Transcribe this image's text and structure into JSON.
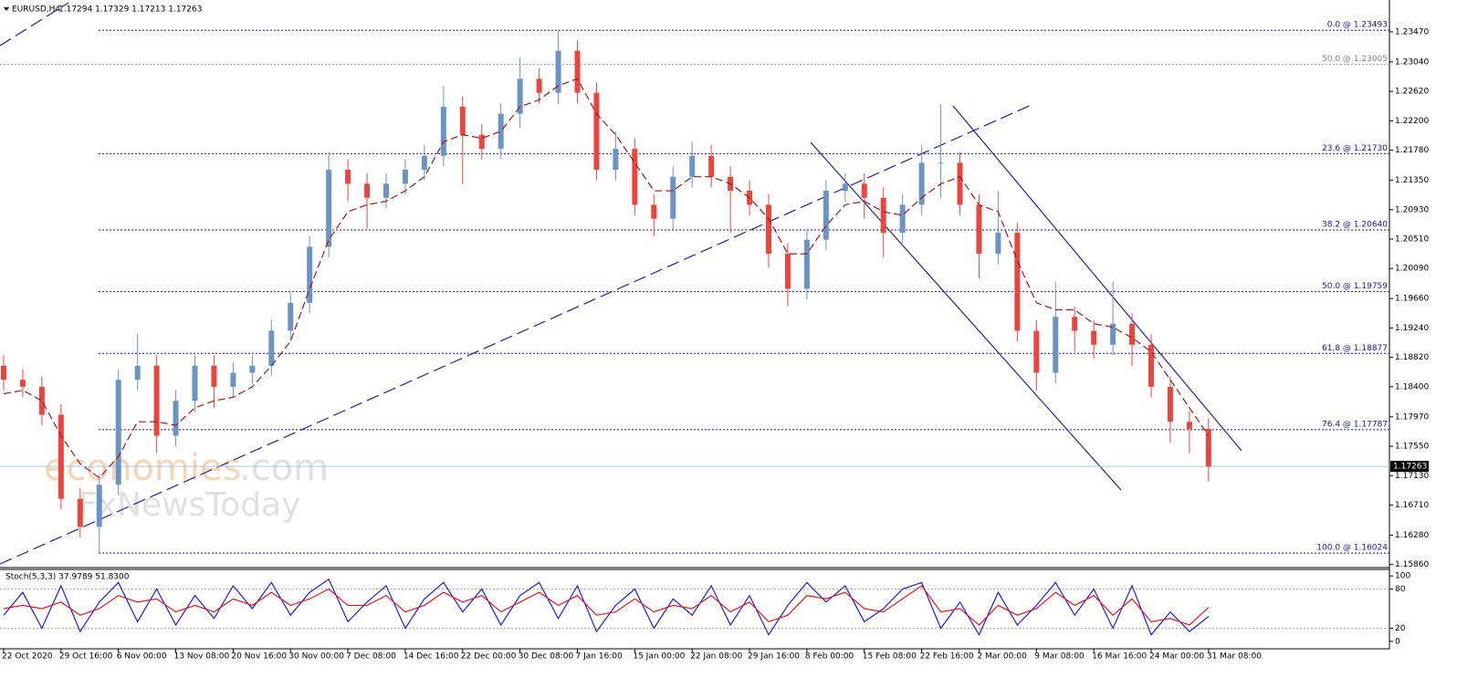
{
  "chart_data": {
    "type": "candlestick",
    "symbol": "EURUSD,H4",
    "quote": "1.17294 1.17329 1.17213 1.17263",
    "categories": [
      "22 Oct 2020",
      null,
      null,
      "29 Oct 16:00",
      null,
      null,
      "6 Nov 00:00",
      null,
      null,
      "13 Nov 08:00",
      null,
      null,
      "20 Nov 16:00",
      null,
      null,
      "30 Nov 00:00",
      null,
      null,
      "7 Dec 08:00",
      null,
      null,
      "14 Dec 16:00",
      null,
      null,
      "22 Dec 00:00",
      null,
      null,
      "30 Dec 08:00",
      null,
      null,
      "7 Jan 16:00",
      null,
      null,
      "15 Jan 00:00",
      null,
      null,
      "22 Jan 08:00",
      null,
      null,
      "29 Jan 16:00",
      null,
      null,
      "8 Feb 00:00",
      null,
      null,
      "15 Feb 08:00",
      null,
      null,
      "22 Feb 16:00",
      null,
      null,
      "2 Mar 00:00",
      null,
      null,
      "9 Mar 08:00",
      null,
      null,
      "16 Mar 16:00",
      null,
      null,
      "24 Mar 00:00",
      null,
      null,
      "31 Mar 08:00"
    ],
    "open": [
      1.187,
      1.185,
      1.184,
      1.18,
      1.168,
      1.164,
      1.17,
      1.185,
      1.187,
      1.177,
      1.182,
      1.187,
      1.184,
      1.186,
      1.187,
      1.192,
      1.196,
      1.204,
      1.215,
      1.213,
      1.211,
      1.213,
      1.215,
      1.217,
      1.224,
      1.22,
      1.218,
      1.223,
      1.228,
      1.226,
      1.232,
      1.226,
      1.215,
      1.218,
      1.21,
      1.208,
      1.214,
      1.217,
      1.214,
      1.212,
      1.21,
      1.203,
      1.198,
      1.205,
      1.212,
      1.213,
      1.211,
      1.206,
      1.21,
      1.216,
      1.216,
      1.21,
      1.203,
      1.206,
      1.192,
      1.186,
      1.194,
      1.192,
      1.19,
      1.193,
      1.19,
      1.184,
      1.179,
      1.178
    ],
    "high": [
      1.1885,
      1.1865,
      1.1855,
      1.1815,
      1.1695,
      1.1715,
      1.1865,
      1.1915,
      1.1885,
      1.1835,
      1.1885,
      1.1885,
      1.1875,
      1.1885,
      1.1935,
      1.1975,
      1.2055,
      1.2175,
      1.2165,
      1.2145,
      1.2145,
      1.2165,
      1.2185,
      1.227,
      1.2255,
      1.2215,
      1.2245,
      1.231,
      1.2295,
      1.2349,
      1.2335,
      1.2275,
      1.2205,
      1.2195,
      1.2115,
      1.2155,
      1.219,
      1.2185,
      1.2155,
      1.2135,
      1.2115,
      1.2045,
      1.2065,
      1.2135,
      1.2145,
      1.2145,
      1.2125,
      1.2115,
      1.2185,
      1.2243,
      1.2175,
      1.2115,
      1.212,
      1.2075,
      1.1935,
      1.199,
      1.1955,
      1.1935,
      1.199,
      1.1945,
      1.1915,
      1.1855,
      1.1805,
      1.1795
    ],
    "low": [
      1.1835,
      1.1825,
      1.1785,
      1.1665,
      1.1625,
      1.1602,
      1.1685,
      1.1835,
      1.1745,
      1.1755,
      1.1805,
      1.181,
      1.1825,
      1.1845,
      1.1855,
      1.1905,
      1.1945,
      1.2025,
      1.2105,
      1.2065,
      1.2095,
      1.2115,
      1.2135,
      1.2155,
      1.213,
      1.2165,
      1.2165,
      1.221,
      1.2245,
      1.2245,
      1.2245,
      1.2135,
      1.2135,
      1.2085,
      1.2055,
      1.2065,
      1.2125,
      1.2125,
      1.206,
      1.2085,
      1.201,
      1.1955,
      1.1965,
      1.2035,
      1.2105,
      1.208,
      1.2025,
      1.2045,
      1.2085,
      1.211,
      1.2085,
      1.1995,
      1.2015,
      1.1905,
      1.1835,
      1.1845,
      1.189,
      1.188,
      1.1885,
      1.187,
      1.1825,
      1.176,
      1.1745,
      1.1705
    ],
    "close": [
      1.185,
      1.184,
      1.18,
      1.168,
      1.164,
      1.17,
      1.185,
      1.187,
      1.177,
      1.182,
      1.187,
      1.184,
      1.186,
      1.187,
      1.192,
      1.196,
      1.204,
      1.215,
      1.213,
      1.211,
      1.213,
      1.215,
      1.217,
      1.224,
      1.22,
      1.218,
      1.223,
      1.228,
      1.226,
      1.232,
      1.226,
      1.215,
      1.218,
      1.21,
      1.208,
      1.214,
      1.217,
      1.214,
      1.212,
      1.21,
      1.203,
      1.198,
      1.205,
      1.212,
      1.213,
      1.211,
      1.206,
      1.21,
      1.216,
      1.216,
      1.21,
      1.203,
      1.206,
      1.192,
      1.186,
      1.194,
      1.192,
      1.19,
      1.193,
      1.19,
      1.184,
      1.179,
      1.178,
      1.1726
    ],
    "up_color": "#6b93c4",
    "down_color": "#e8463f",
    "ma": {
      "color": "#9b1b1b",
      "values": [
        1.183,
        1.1835,
        1.182,
        1.177,
        1.173,
        1.171,
        1.174,
        1.179,
        1.179,
        1.1785,
        1.181,
        1.182,
        1.1825,
        1.184,
        1.187,
        1.1905,
        1.198,
        1.205,
        1.209,
        1.21,
        1.2105,
        1.212,
        1.214,
        1.219,
        1.22,
        1.2195,
        1.2205,
        1.224,
        1.225,
        1.227,
        1.228,
        1.223,
        1.22,
        1.216,
        1.212,
        1.212,
        1.214,
        1.214,
        1.213,
        1.211,
        1.208,
        1.203,
        1.203,
        1.207,
        1.21,
        1.2105,
        1.209,
        1.2085,
        1.211,
        1.213,
        1.214,
        1.21,
        1.209,
        1.202,
        1.196,
        1.195,
        1.195,
        1.193,
        1.1925,
        1.191,
        1.189,
        1.185,
        1.181,
        1.177
      ]
    },
    "ylim": [
      1.1583,
      1.2386
    ],
    "yticks": [
      {
        "value": 1.2347,
        "label": "1.23470"
      },
      {
        "value": 1.2304,
        "label": "1.23040"
      },
      {
        "value": 1.2262,
        "label": "1.22620"
      },
      {
        "value": 1.222,
        "label": "1.22200"
      },
      {
        "value": 1.2178,
        "label": "1.21780"
      },
      {
        "value": 1.2135,
        "label": "1.21350"
      },
      {
        "value": 1.2093,
        "label": "1.20930"
      },
      {
        "value": 1.2051,
        "label": "1.20510"
      },
      {
        "value": 1.2009,
        "label": "1.20090"
      },
      {
        "value": 1.1966,
        "label": "1.19660"
      },
      {
        "value": 1.1924,
        "label": "1.19240"
      },
      {
        "value": 1.1882,
        "label": "1.18820"
      },
      {
        "value": 1.184,
        "label": "1.18400"
      },
      {
        "value": 1.1797,
        "label": "1.17970"
      },
      {
        "value": 1.1755,
        "label": "1.17550"
      },
      {
        "value": 1.1713,
        "label": "1.17130"
      },
      {
        "value": 1.1671,
        "label": "1.16710"
      },
      {
        "value": 1.1628,
        "label": "1.16280"
      },
      {
        "value": 1.1586,
        "label": "1.15860"
      }
    ],
    "levels": [
      {
        "label": "0.0 @ 1.23493",
        "value": 1.23493,
        "color": "#1a1a9a"
      },
      {
        "label": "50.0 @ 1.23005",
        "value": 1.23005,
        "color": "#a0a0a0"
      },
      {
        "label": "23.6 @ 1.21730",
        "value": 1.2173,
        "color": "#1a1a9a"
      },
      {
        "label": "38.2 @ 1.20640",
        "value": 1.2064,
        "color": "#1a1a9a"
      },
      {
        "label": "50.0 @ 1.19759",
        "value": 1.19759,
        "color": "#1a1a9a"
      },
      {
        "label": "61.8 @ 1.18877",
        "value": 1.18877,
        "color": "#1a1a9a"
      },
      {
        "label": "76.4 @ 1.17787",
        "value": 1.17787,
        "color": "#1a1a9a"
      },
      {
        "label": "100.0 @ 1.16024",
        "value": 1.16024,
        "color": "#1a1a9a"
      }
    ],
    "current_price": {
      "value": 1.17263,
      "label": "1.17263"
    },
    "indicator": {
      "title": "Stoch(5,3,3) 37.9789 51.8300",
      "ylim": [
        -10,
        110
      ],
      "yticks": [
        100,
        80,
        20,
        0
      ],
      "levels": [
        80,
        20
      ],
      "series": [
        {
          "color": "#1e1ed2",
          "values": [
            40,
            75,
            20,
            85,
            15,
            60,
            90,
            30,
            80,
            25,
            70,
            35,
            85,
            50,
            90,
            40,
            75,
            95,
            30,
            60,
            85,
            20,
            65,
            90,
            45,
            80,
            25,
            70,
            90,
            35,
            85,
            15,
            55,
            80,
            20,
            65,
            40,
            85,
            25,
            70,
            10,
            55,
            90,
            60,
            85,
            30,
            50,
            80,
            90,
            20,
            60,
            10,
            75,
            25,
            55,
            90,
            40,
            80,
            20,
            85,
            10,
            45,
            15,
            37.9789
          ]
        },
        {
          "color": "#e01b1b",
          "values": [
            50,
            55,
            50,
            60,
            40,
            50,
            70,
            60,
            65,
            45,
            55,
            45,
            65,
            55,
            75,
            55,
            65,
            80,
            55,
            55,
            70,
            45,
            55,
            75,
            60,
            70,
            45,
            60,
            75,
            55,
            70,
            40,
            45,
            65,
            45,
            55,
            50,
            70,
            45,
            60,
            30,
            40,
            70,
            65,
            75,
            50,
            45,
            65,
            85,
            45,
            50,
            25,
            55,
            40,
            50,
            75,
            55,
            70,
            40,
            65,
            30,
            35,
            25,
            51.83
          ]
        }
      ]
    },
    "watermark": {
      "brand": "economies",
      "domain": ".com",
      "sub": "FxNewsToday"
    }
  }
}
